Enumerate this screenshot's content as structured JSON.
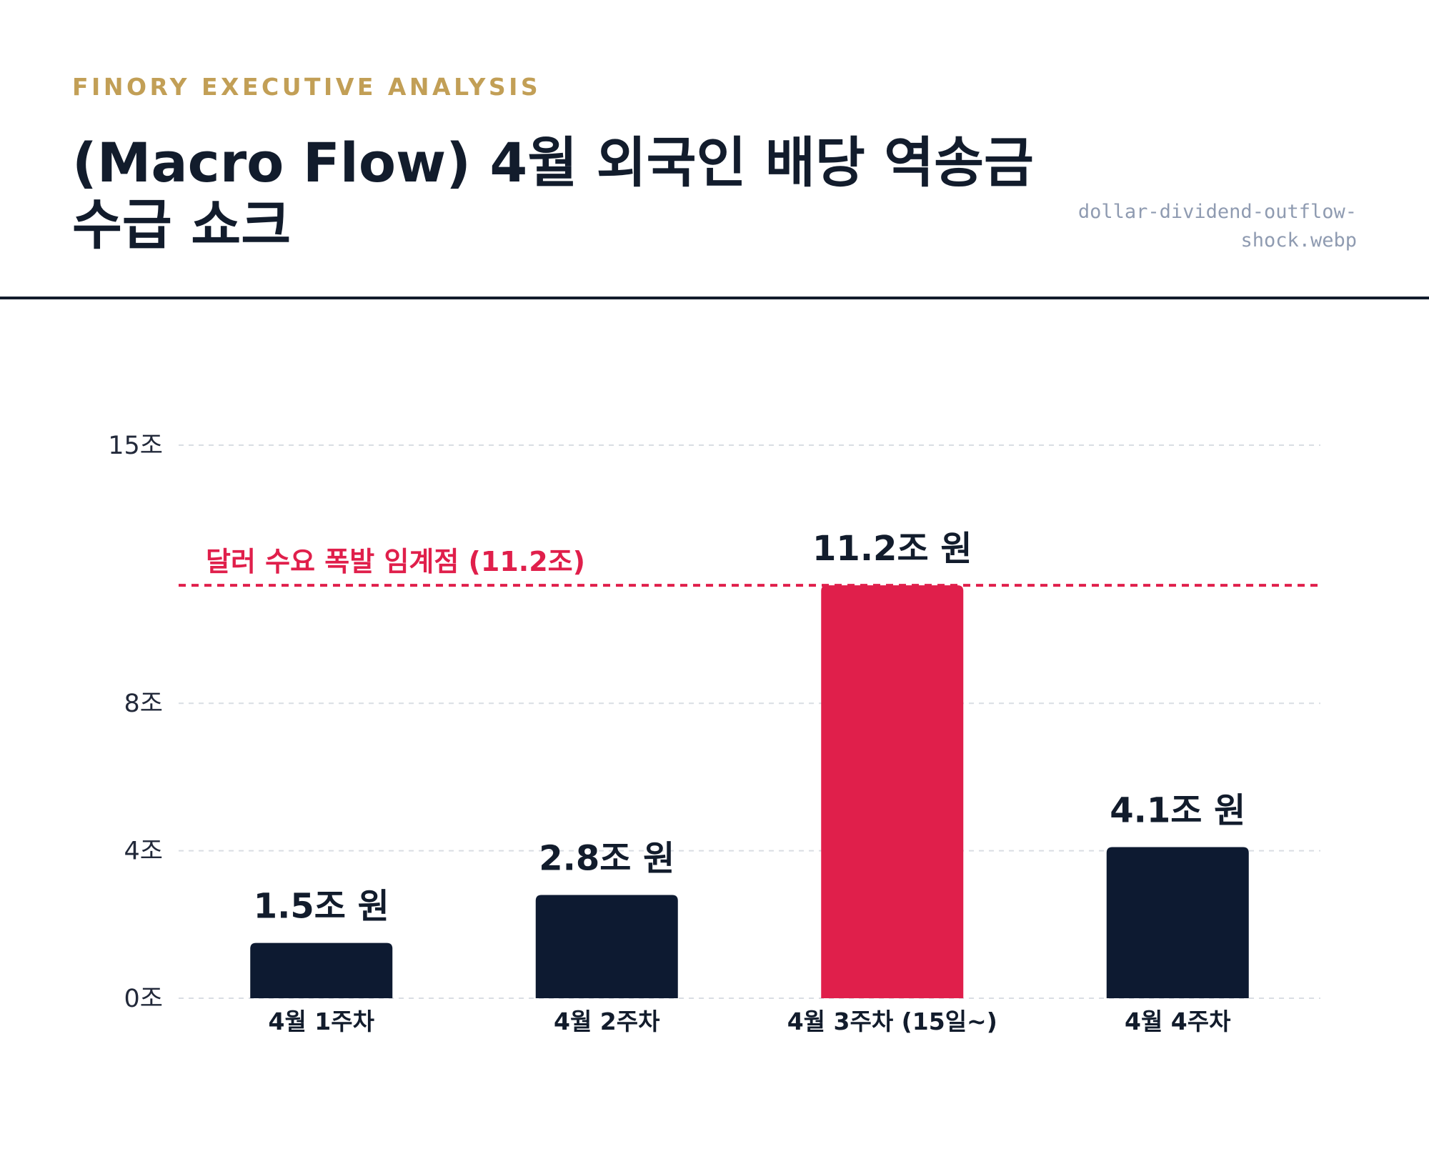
{
  "header": {
    "kicker": "FINORY EXECUTIVE ANALYSIS",
    "title_line1": "(Macro Flow) 4월 외국인 배당 역송금",
    "title_line2": "수급 쇼크",
    "filename_line1": "dollar-dividend-outflow-",
    "filename_line2": "shock.webp"
  },
  "colors": {
    "accent": "#c29f56",
    "bar_default": "#0d1a31",
    "bar_highlight": "#e01f4b",
    "threshold": "#e01f4b",
    "text_dark": "#121c2c",
    "grid": "#d9dde3"
  },
  "chart_data": {
    "type": "bar",
    "categories": [
      "4월 1주차",
      "4월 2주차",
      "4월 3주차 (15일~)",
      "4월 4주차"
    ],
    "values": [
      1.5,
      2.8,
      11.2,
      4.1
    ],
    "data_labels": [
      "1.5조 원",
      "2.8조 원",
      "11.2조 원",
      "4.1조 원"
    ],
    "highlight_index": 2,
    "yticks": [
      0,
      4,
      8,
      15
    ],
    "ytick_labels": [
      "0조",
      "4조",
      "8조",
      "15조"
    ],
    "ylim": [
      0,
      15
    ],
    "grid": true,
    "threshold": {
      "value": 11.2,
      "label": "달러 수요 폭발 임계점 (11.2조)"
    },
    "title": "",
    "xlabel": "",
    "ylabel": ""
  }
}
